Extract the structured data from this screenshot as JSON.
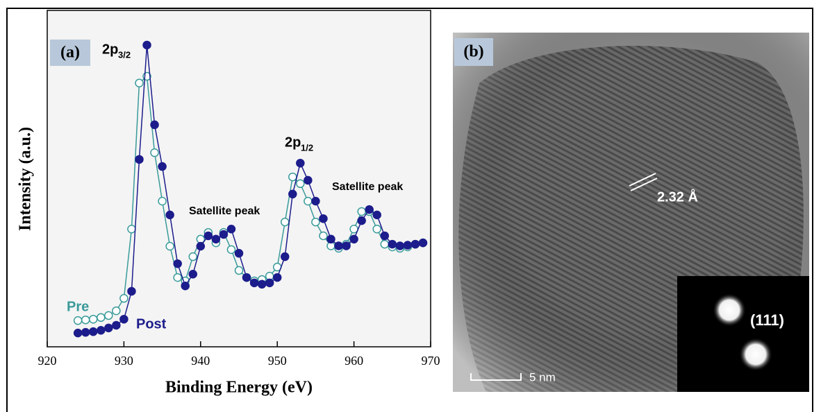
{
  "chart_data": {
    "type": "scatter",
    "panel_label": "(a)",
    "x_label": "Binding Energy (eV)",
    "y_label": "Intensity (a.u.)",
    "xlim": [
      920,
      970
    ],
    "xticks": [
      920,
      930,
      940,
      950,
      960,
      970
    ],
    "ylim": [
      0,
      100
    ],
    "x": [
      924,
      925,
      926,
      927,
      928,
      929,
      930,
      931,
      932,
      933,
      934,
      935,
      936,
      937,
      938,
      939,
      940,
      941,
      942,
      943,
      944,
      945,
      946,
      947,
      948,
      949,
      950,
      951,
      952,
      953,
      954,
      955,
      956,
      957,
      958,
      959,
      960,
      961,
      962,
      963,
      964,
      965,
      966,
      967,
      968,
      969
    ],
    "series": [
      {
        "name": "Pre",
        "color": "#3a9a9a",
        "marker": "open",
        "values": [
          7.8,
          8,
          8.2,
          8.7,
          9.3,
          10.7,
          14.4,
          35,
          78.4,
          80.4,
          57.7,
          43.3,
          29.9,
          20.6,
          19.6,
          26.8,
          32,
          34,
          30.9,
          34,
          28.9,
          22.7,
          20.6,
          19.6,
          20,
          21,
          23.7,
          37.1,
          50.5,
          48.5,
          43.3,
          37.1,
          33,
          30,
          29.3,
          30.5,
          35,
          40.2,
          40.2,
          35,
          30.5,
          29.7,
          29.3,
          29.7,
          30.5,
          30.9
        ]
      },
      {
        "name": "Post",
        "color": "#1c1c8c",
        "marker": "filled",
        "values": [
          4.1,
          4.3,
          4.5,
          4.9,
          5.6,
          6.4,
          8.2,
          16.5,
          55.7,
          89.7,
          66,
          53.6,
          39.2,
          24.7,
          18.1,
          21.6,
          29.9,
          33,
          32,
          33.4,
          35,
          27.8,
          20.6,
          19,
          18.6,
          19,
          20.6,
          26.8,
          45.4,
          54.6,
          49.5,
          43.3,
          38.1,
          32,
          30,
          30,
          32,
          37.5,
          40.8,
          39.2,
          33,
          30.5,
          30,
          30.2,
          30.5,
          30.9
        ]
      }
    ],
    "annotations": [
      {
        "main": "2p",
        "sub": "3/2"
      },
      {
        "main": "2p",
        "sub": "1/2"
      },
      {
        "main": "Satellite peak"
      },
      {
        "main": "Satellite peak"
      }
    ]
  },
  "image_panel": {
    "panel_label": "(b)",
    "spacing_label": "2.32 Å",
    "scale_bar": "5 nm",
    "inset_label": "(111)"
  }
}
